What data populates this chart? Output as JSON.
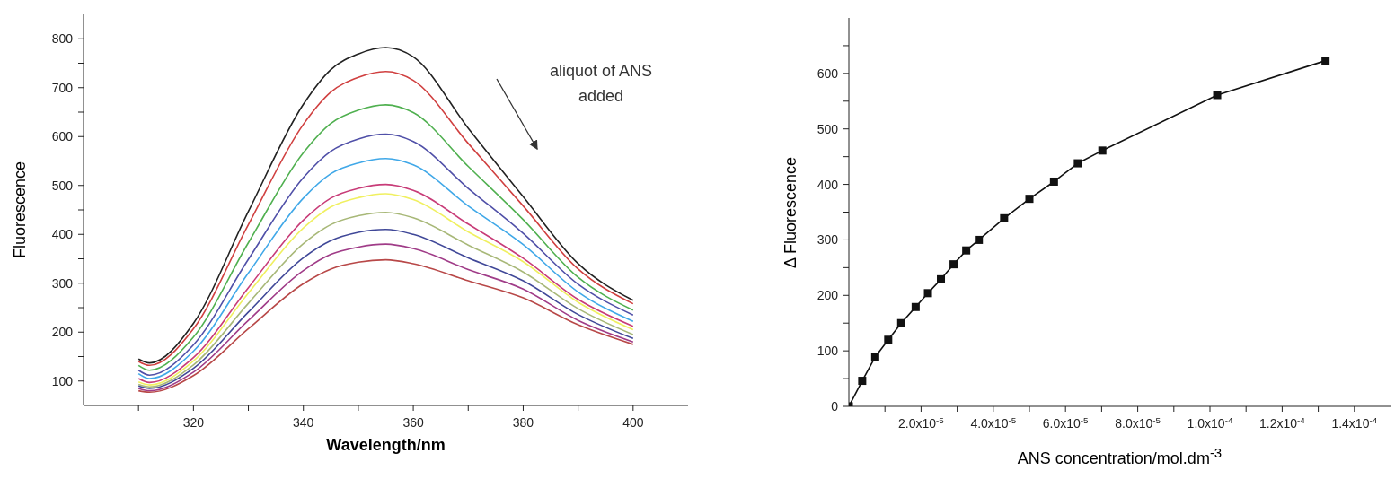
{
  "chart_data": [
    {
      "type": "line",
      "xlabel": "Wavelength/nm",
      "ylabel": "Fluorescence",
      "annotations": [
        "aliquot of ANS added"
      ],
      "marker": "none",
      "line_style": "solid",
      "grid": false,
      "legend": false,
      "xlim": [
        300,
        410
      ],
      "xticks": [
        {
          "value": 310,
          "label": null
        },
        320,
        {
          "value": 330,
          "label": null
        },
        340,
        {
          "value": 350,
          "label": null
        },
        360,
        {
          "value": 370,
          "label": null
        },
        380,
        {
          "value": 390,
          "label": null
        },
        400
      ],
      "ylim": [
        50,
        850
      ],
      "yticks": [
        100,
        {
          "value": 150,
          "label": null
        },
        200,
        {
          "value": 250,
          "label": null
        },
        300,
        {
          "value": 350,
          "label": null
        },
        400,
        {
          "value": 450,
          "label": null
        },
        500,
        {
          "value": 550,
          "label": null
        },
        600,
        {
          "value": 650,
          "label": null
        },
        700,
        {
          "value": 750,
          "label": null
        },
        800
      ],
      "x": [
        310,
        312,
        320,
        330,
        340,
        345,
        350,
        355,
        360,
        370,
        380,
        390,
        400
      ],
      "series": [
        {
          "color": "#222222",
          "values": [
            145,
            137,
            218,
            447,
            666,
            737,
            769,
            782,
            763,
            617,
            477,
            340,
            265
          ]
        },
        {
          "color": "#d04040",
          "values": [
            140,
            132,
            207,
            420,
            625,
            691,
            721,
            733,
            715,
            586,
            458,
            329,
            258
          ]
        },
        {
          "color": "#50b050",
          "values": [
            132,
            122,
            190,
            383,
            567,
            627,
            654,
            665,
            649,
            539,
            430,
            312,
            245
          ]
        },
        {
          "color": "#5050a8",
          "values": [
            122,
            112,
            174,
            349,
            516,
            570,
            595,
            605,
            590,
            494,
            402,
            298,
            235
          ]
        },
        {
          "color": "#40a8e8",
          "values": [
            115,
            105,
            161,
            321,
            474,
            524,
            546,
            555,
            542,
            458,
            379,
            282,
            222
          ]
        },
        {
          "color": "#c83c78",
          "values": [
            105,
            97,
            148,
            291,
            429,
            474,
            494,
            502,
            490,
            421,
            351,
            267,
            212
          ]
        },
        {
          "color": "#f0f060",
          "values": [
            98,
            92,
            141,
            280,
            413,
            456,
            475,
            483,
            471,
            405,
            344,
            261,
            205
          ]
        },
        {
          "color": "#a8b878",
          "values": [
            93,
            88,
            133,
            259,
            381,
            420,
            438,
            445,
            434,
            378,
            323,
            248,
            195
          ]
        },
        {
          "color": "#404898",
          "values": [
            90,
            85,
            126,
            241,
            352,
            387,
            404,
            410,
            400,
            352,
            305,
            236,
            187
          ]
        },
        {
          "color": "#a03c88",
          "values": [
            85,
            80,
            118,
            224,
            326,
            359,
            374,
            380,
            371,
            328,
            288,
            224,
            180
          ]
        },
        {
          "color": "#b84848",
          "values": [
            80,
            77,
            111,
            207,
            299,
            329,
            343,
            348,
            340,
            305,
            270,
            215,
            175
          ]
        }
      ]
    },
    {
      "type": "line",
      "xlabel": "ANS concentration/mol.dm$^{-3}$",
      "ylabel": "Δ Fluorescence",
      "marker": "square",
      "line_style": "solid",
      "grid": false,
      "legend": false,
      "xlim": [
        0,
        0.00015
      ],
      "xticks": [
        {
          "value": 1e-05,
          "label": null
        },
        {
          "value": 2e-05,
          "label": "2.0x10$^{-5}$"
        },
        {
          "value": 3e-05,
          "label": null
        },
        {
          "value": 4e-05,
          "label": "4.0x10$^{-5}$"
        },
        {
          "value": 5e-05,
          "label": null
        },
        {
          "value": 6e-05,
          "label": "6.0x10$^{-5}$"
        },
        {
          "value": 7e-05,
          "label": null
        },
        {
          "value": 8e-05,
          "label": "8.0x10$^{-5}$"
        },
        {
          "value": 9e-05,
          "label": null
        },
        {
          "value": 0.0001,
          "label": "1.0x10$^{-4}$"
        },
        {
          "value": 0.00011,
          "label": null
        },
        {
          "value": 0.00012,
          "label": "1.2x10$^{-4}$"
        },
        {
          "value": 0.00013,
          "label": null
        },
        {
          "value": 0.00014,
          "label": "1.4x10$^{-4}$"
        }
      ],
      "ylim": [
        0,
        700
      ],
      "yticks": [
        0,
        {
          "value": 50,
          "label": null
        },
        100,
        {
          "value": 150,
          "label": null
        },
        200,
        {
          "value": 250,
          "label": null
        },
        300,
        {
          "value": 350,
          "label": null
        },
        400,
        {
          "value": 450,
          "label": null
        },
        500,
        {
          "value": 550,
          "label": null
        },
        600,
        {
          "value": 650,
          "label": null
        }
      ],
      "x": [
        0,
        3.7e-06,
        7.3e-06,
        1.09e-05,
        1.45e-05,
        1.85e-05,
        2.19e-05,
        2.55e-05,
        2.9e-05,
        3.25e-05,
        3.6e-05,
        4.3e-05,
        5e-05,
        5.68e-05,
        6.34e-05,
        7.02e-05,
        0.000102,
        0.000132
      ],
      "series": [
        {
          "color": "#111111",
          "values": [
            0,
            46,
            89,
            120,
            150,
            179,
            204,
            229,
            256,
            281,
            300,
            339,
            374,
            405,
            438,
            461,
            561,
            623
          ]
        }
      ]
    }
  ]
}
